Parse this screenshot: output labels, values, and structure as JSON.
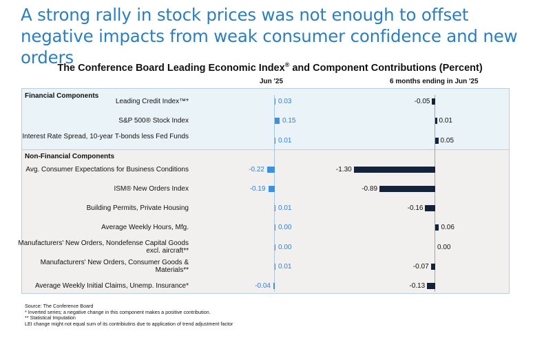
{
  "headline": "A strong rally in stock prices was not enough to offset negative impacts from weak consumer confidence and new orders",
  "chart_data": {
    "type": "bar",
    "title": "The Conference Board Leading Economic Index",
    "title_mark": "®",
    "title_suffix": " and Component Contributions (Percent)",
    "column_headers": [
      "Jun  '25",
      "6 months ending in Jun  '25"
    ],
    "groups": [
      {
        "name": "Financial Components",
        "categories": [
          "Leading Credit Index™*",
          "S&P 500® Stock Index",
          "Interest Rate Spread, 10-year T-bonds less Fed Funds"
        ]
      },
      {
        "name": "Non-Financial Components",
        "categories": [
          "Avg. Consumer Expectations for Business Conditions",
          "ISM® New Orders Index",
          "Building Permits, Private Housing",
          "Average Weekly Hours, Mfg.",
          "Manufacturers' New Orders, Nondefense Capital Goods excl. aircraft**",
          "Manufacturers' New Orders, Consumer Goods & Materials**",
          "Average Weekly Initial Claims, Unemp. Insurance*"
        ]
      }
    ],
    "series": [
      {
        "name": "Jun  '25",
        "color": "#3d8fe0",
        "values": [
          0.03,
          0.15,
          0.01,
          -0.22,
          -0.19,
          0.01,
          0.0,
          0.0,
          0.01,
          -0.04
        ],
        "labels": [
          "0.03",
          "0.15",
          "0.01",
          "-0.22",
          "-0.19",
          "0.01",
          "0.00",
          "0.00",
          "0.01",
          "-0.04"
        ]
      },
      {
        "name": "6 months ending in Jun  '25",
        "color": "#14233a",
        "values": [
          -0.05,
          0.01,
          0.05,
          -1.3,
          -0.89,
          -0.16,
          0.06,
          0.0,
          -0.07,
          -0.13
        ],
        "labels": [
          "-0.05",
          "0.01",
          "0.05",
          "-1.30",
          "-0.89",
          "-0.16",
          "0.06",
          "0.00",
          "-0.07",
          "-0.13"
        ]
      }
    ]
  },
  "footnotes": [
    "Source: The Conference Board",
    "*  Inverted series; a negative change in this component makes a positive contribution.",
    "**  Statistical Imputation",
    "LEI change might not equal sum of its contribiutins due to application of trend adjustment factor"
  ]
}
